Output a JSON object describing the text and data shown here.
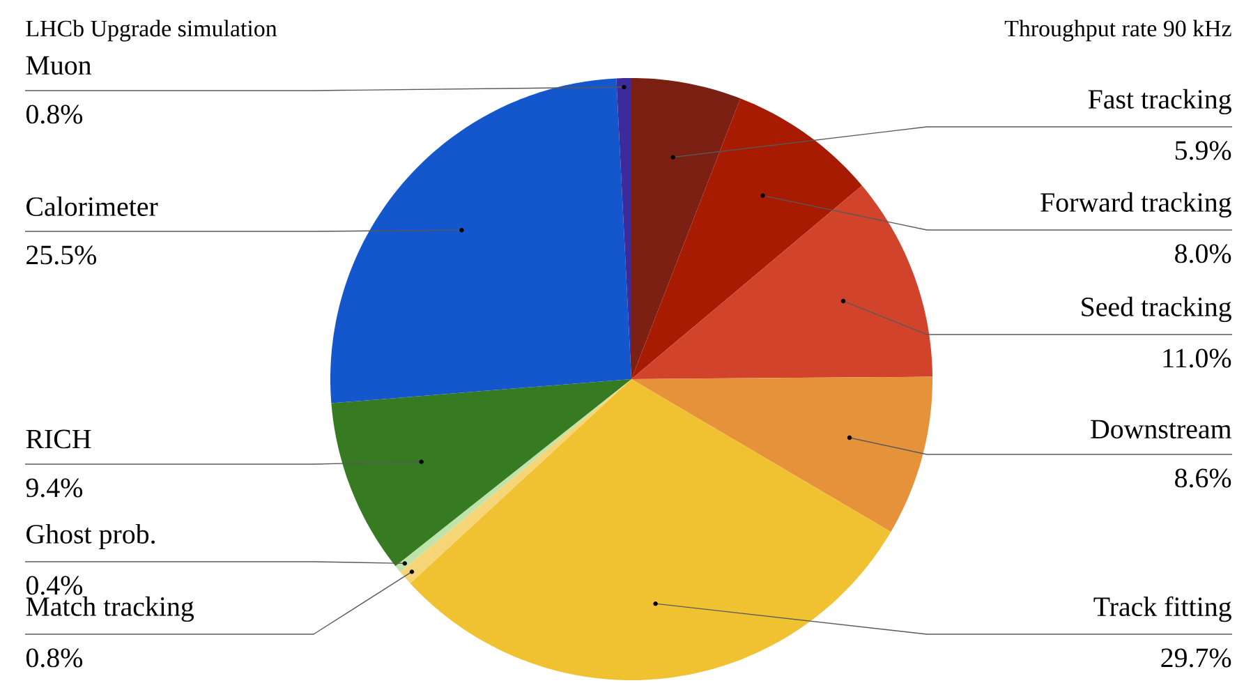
{
  "chart_data": {
    "type": "pie",
    "title": "LHCb Upgrade simulation",
    "subtitle": "Throughput rate 90 kHz",
    "categories": [
      "Fast tracking",
      "Forward tracking",
      "Seed tracking",
      "Downstream",
      "Track fitting",
      "Match tracking",
      "Ghost prob.",
      "RICH",
      "Calorimeter",
      "Muon"
    ],
    "values": [
      5.9,
      8.0,
      11.0,
      8.6,
      29.7,
      0.8,
      0.4,
      9.4,
      25.5,
      0.8
    ],
    "value_labels": [
      "5.9%",
      "8.0%",
      "11.0%",
      "8.6%",
      "29.7%",
      "0.8%",
      "0.4%",
      "9.4%",
      "25.5%",
      "0.8%"
    ],
    "colors": [
      "#7b2012",
      "#a61b02",
      "#d2432b",
      "#e6923b",
      "#f0c232",
      "#f6d577",
      "#bfe3a8",
      "#367a22",
      "#1456cc",
      "#3b2b9b"
    ]
  }
}
